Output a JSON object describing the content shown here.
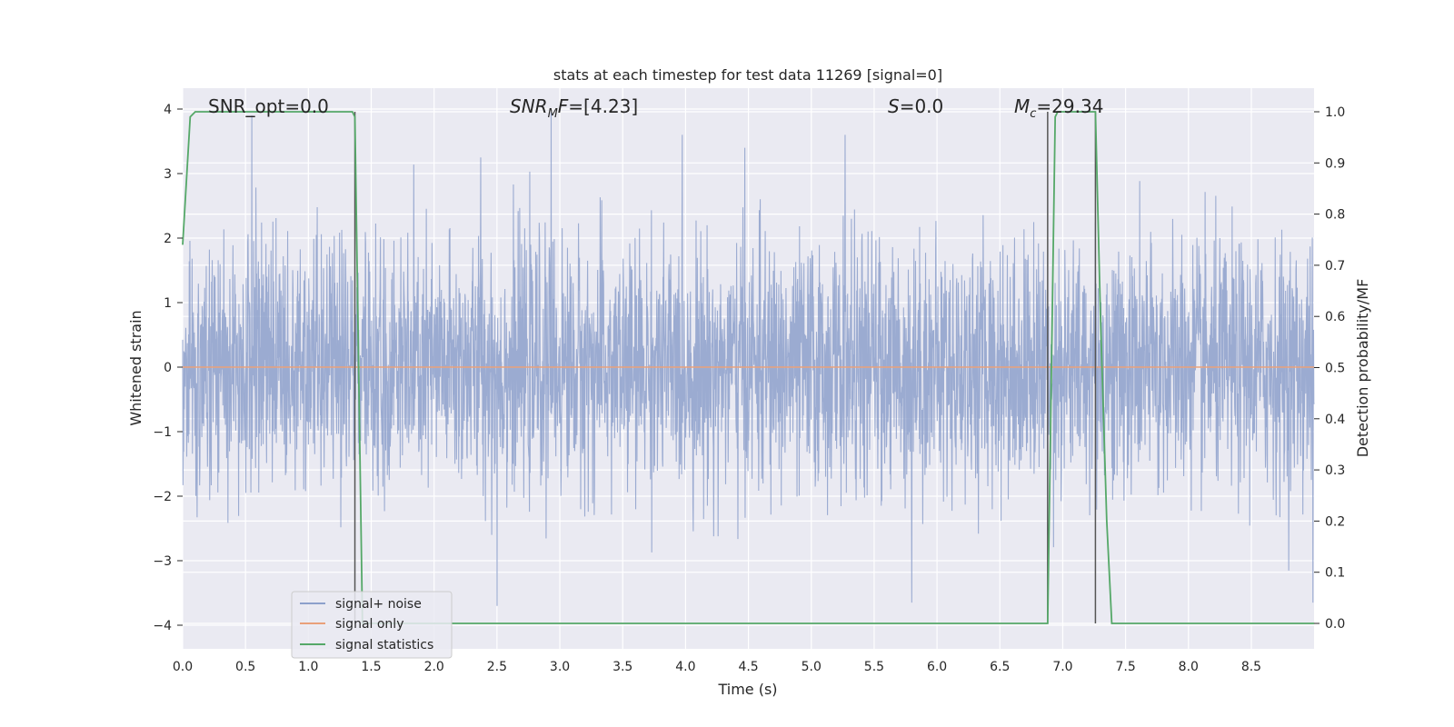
{
  "chart_data": {
    "type": "line",
    "title": "stats at each timestep for test data 11269 [signal=0]",
    "xlabel": "Time (s)",
    "ylabel": "Whitened strain",
    "y2label": "Detection probability/MF",
    "xlim": [
      0.0,
      9.0
    ],
    "ylim": [
      -4.4,
      4.3
    ],
    "y2lim": [
      -0.045,
      1.045
    ],
    "x_ticks": [
      0.0,
      0.5,
      1.0,
      1.5,
      2.0,
      2.5,
      3.0,
      3.5,
      4.0,
      4.5,
      5.0,
      5.5,
      6.0,
      6.5,
      7.0,
      7.5,
      8.0,
      8.5
    ],
    "x_tick_labels": [
      "0.0",
      "0.5",
      "1.0",
      "1.5",
      "2.0",
      "2.5",
      "3.0",
      "3.5",
      "4.0",
      "4.5",
      "5.0",
      "5.5",
      "6.0",
      "6.5",
      "7.0",
      "7.5",
      "8.0",
      "8.5"
    ],
    "y_ticks": [
      4,
      3,
      2,
      1,
      0,
      -1,
      -2,
      -3,
      -4
    ],
    "y_tick_labels": [
      "4",
      "3",
      "2",
      "1",
      "0",
      "−1",
      "−2",
      "−3",
      "−4"
    ],
    "y2_ticks": [
      1.0,
      0.9,
      0.8,
      0.7,
      0.6,
      0.5,
      0.4,
      0.3,
      0.2,
      0.1,
      0.0
    ],
    "y2_tick_labels": [
      "1.0",
      "0.9",
      "0.8",
      "0.7",
      "0.6",
      "0.5",
      "0.4",
      "0.3",
      "0.2",
      "0.1",
      "0.0"
    ],
    "grid": true,
    "annotations": {
      "snr_opt": "SNR_opt=0.0",
      "snr_mf": "=[4.23]",
      "s_val": "=0.0",
      "mc_val": "=29.34"
    },
    "legend_position": "lower left",
    "series": [
      {
        "name": "signal+ noise",
        "color": "#8da0cb",
        "axis": "left",
        "description": "whitened noise with std ~1, spikes up to about +4 near t=0.55 and t=2.93 and down to -3.7 near t=2.5, t=5.8",
        "peaks": [
          [
            0.55,
            3.9
          ],
          [
            2.93,
            3.95
          ],
          [
            4.47,
            3.4
          ],
          [
            5.27,
            3.6
          ],
          [
            2.37,
            3.25
          ],
          [
            6.88,
            -2.6
          ],
          [
            5.8,
            -3.65
          ],
          [
            2.5,
            -3.7
          ],
          [
            8.99,
            -3.65
          ]
        ]
      },
      {
        "name": "signal only",
        "color": "#e9a07a",
        "axis": "left",
        "x": [
          0.0,
          9.0
        ],
        "y": [
          0.0,
          0.0
        ]
      },
      {
        "name": "signal statistics",
        "color": "#55a868",
        "axis": "right",
        "x": [
          0.0,
          0.06,
          0.1,
          0.15,
          1.3,
          1.35,
          1.37,
          1.43,
          1.45,
          6.85,
          6.88,
          6.94,
          6.96,
          7.26,
          7.3,
          7.35,
          7.39,
          9.0
        ],
        "y": [
          0.74,
          0.99,
          1.0,
          1.0,
          1.0,
          1.0,
          0.99,
          0.0,
          0.0,
          0.0,
          0.0,
          0.99,
          1.0,
          1.0,
          0.6,
          0.2,
          0.0,
          0.0
        ]
      }
    ],
    "vlines": [
      {
        "x": 1.37,
        "y2": [
          0.0,
          1.0
        ]
      },
      {
        "x": 6.88,
        "y2": [
          0.0,
          1.0
        ]
      },
      {
        "x": 7.26,
        "y2": [
          0.0,
          1.0
        ]
      }
    ],
    "colors": {
      "background": "#eaeaf2",
      "grid": "#ffffff",
      "vline": "#555555"
    }
  }
}
